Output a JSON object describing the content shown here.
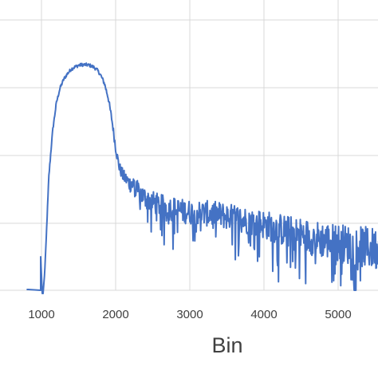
{
  "chart_data": {
    "type": "line",
    "title": "",
    "xlabel": "Bin",
    "ylabel": "",
    "xlim": [
      600,
      5600
    ],
    "x_ticks": [
      1000,
      2000,
      3000,
      4000,
      5000
    ],
    "x_tick_labels": [
      "1000",
      "2000",
      "3000",
      "4000",
      "5000"
    ],
    "grid": true,
    "legend": "none",
    "series_color": "#4472C4",
    "grid_color": "#d9d9d9",
    "series": [
      {
        "x": [
          800,
          1000,
          1030,
          1050,
          1100,
          1150,
          1200,
          1250,
          1300,
          1350,
          1400,
          1450,
          1500,
          1550,
          1600,
          1650,
          1700,
          1750,
          1800,
          1850,
          1900,
          1950,
          2000,
          2050,
          2100,
          2200,
          2300,
          2400,
          2500,
          2600,
          2700,
          2800,
          2900,
          3000,
          3200,
          3400,
          3600,
          3800,
          4000,
          4200,
          4400,
          4600,
          4800,
          5000,
          5200,
          5400,
          5600
        ],
        "y": [
          0,
          0,
          0,
          0.5,
          2.05,
          2.85,
          3.35,
          3.62,
          3.78,
          3.88,
          3.96,
          4.0,
          4.03,
          4.04,
          4.04,
          4.03,
          4.0,
          3.95,
          3.85,
          3.7,
          3.45,
          3.05,
          2.55,
          2.2,
          2.05,
          1.9,
          1.78,
          1.65,
          1.58,
          1.52,
          1.48,
          1.45,
          1.42,
          1.4,
          1.38,
          1.35,
          1.3,
          1.24,
          1.18,
          1.1,
          1.02,
          0.96,
          0.9,
          0.85,
          0.8,
          0.76,
          0.72
        ],
        "noise": [
          0,
          0,
          0,
          0,
          0.03,
          0.03,
          0.03,
          0.03,
          0.03,
          0.03,
          0.03,
          0.03,
          0.03,
          0.03,
          0.03,
          0.03,
          0.03,
          0.03,
          0.03,
          0.04,
          0.05,
          0.06,
          0.08,
          0.1,
          0.12,
          0.15,
          0.18,
          0.2,
          0.2,
          0.2,
          0.22,
          0.22,
          0.22,
          0.22,
          0.23,
          0.24,
          0.24,
          0.25,
          0.26,
          0.28,
          0.3,
          0.32,
          0.33,
          0.35,
          0.36,
          0.38,
          0.4
        ]
      }
    ]
  }
}
